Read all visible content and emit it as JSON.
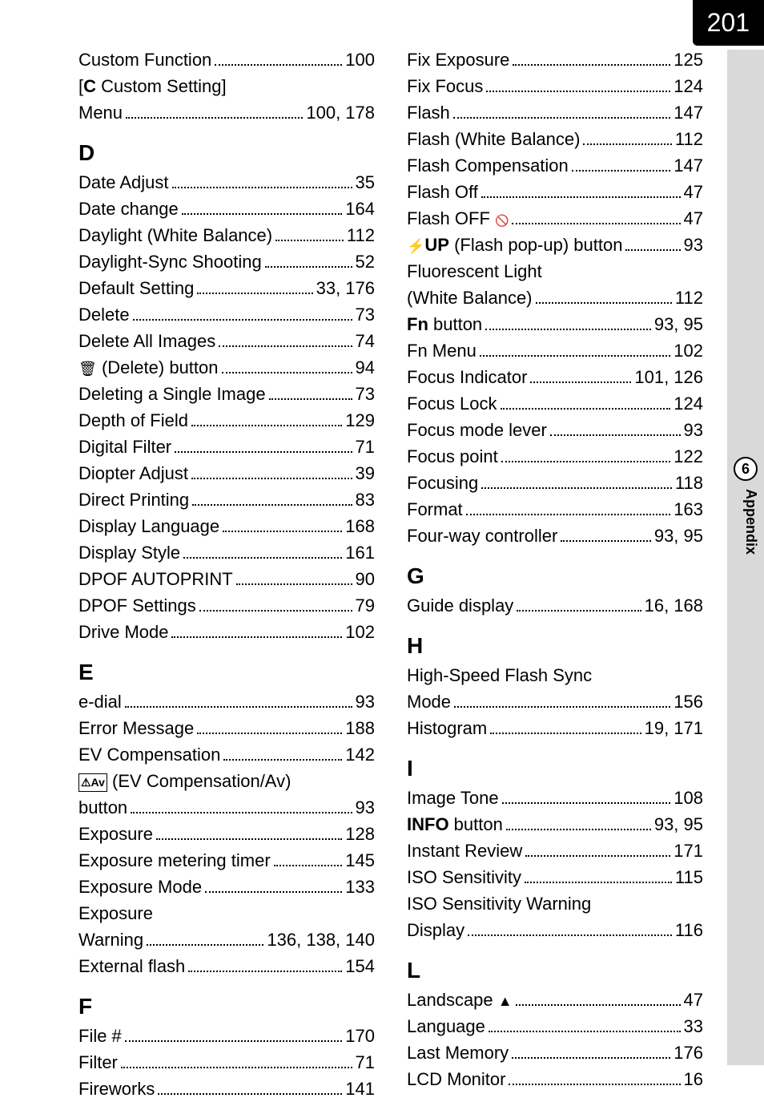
{
  "page_number": "201",
  "side": {
    "section_number": "6",
    "section_label": "Appendix"
  },
  "left_col": [
    {
      "type": "entry",
      "label": "Custom Function",
      "pages": "100"
    },
    {
      "type": "entry",
      "label_html": "[<b>C</b> Custom Setting]",
      "continuation": true
    },
    {
      "type": "entry",
      "label": "Menu",
      "pages": "100, 178"
    },
    {
      "type": "head",
      "text": "D"
    },
    {
      "type": "entry",
      "label": "Date Adjust",
      "pages": "35"
    },
    {
      "type": "entry",
      "label": "Date change",
      "pages": "164"
    },
    {
      "type": "entry",
      "label": "Daylight (White Balance)",
      "pages": "112"
    },
    {
      "type": "entry",
      "label": "Daylight-Sync Shooting",
      "pages": "52"
    },
    {
      "type": "entry",
      "label": "Default Setting",
      "pages": "33, 176"
    },
    {
      "type": "entry",
      "label": "Delete",
      "pages": "73"
    },
    {
      "type": "entry",
      "label": "Delete All Images",
      "pages": "74"
    },
    {
      "type": "entry",
      "label_html": "<span class='icon-trash'></span> (Delete) button",
      "pages": "94"
    },
    {
      "type": "entry",
      "label": "Deleting a Single Image",
      "pages": "73"
    },
    {
      "type": "entry",
      "label": "Depth of Field",
      "pages": "129"
    },
    {
      "type": "entry",
      "label": "Digital Filter",
      "pages": "71"
    },
    {
      "type": "entry",
      "label": "Diopter Adjust",
      "pages": "39"
    },
    {
      "type": "entry",
      "label": "Direct Printing",
      "pages": "83"
    },
    {
      "type": "entry",
      "label": "Display Language",
      "pages": "168"
    },
    {
      "type": "entry",
      "label": "Display Style",
      "pages": "161"
    },
    {
      "type": "entry",
      "label": "DPOF AUTOPRINT",
      "pages": "90"
    },
    {
      "type": "entry",
      "label": "DPOF Settings",
      "pages": "79"
    },
    {
      "type": "entry",
      "label": "Drive Mode",
      "pages": "102"
    },
    {
      "type": "head",
      "text": "E"
    },
    {
      "type": "entry",
      "label": "e-dial",
      "pages": "93"
    },
    {
      "type": "entry",
      "label": "Error Message",
      "pages": "188"
    },
    {
      "type": "entry",
      "label": "EV Compensation",
      "pages": "142"
    },
    {
      "type": "entry",
      "label_html": "<span class='icon-evav'>&#9888;Av</span> (EV Compensation/Av)",
      "continuation": true
    },
    {
      "type": "entry",
      "label": "button",
      "pages": "93"
    },
    {
      "type": "entry",
      "label": "Exposure",
      "pages": "128"
    },
    {
      "type": "entry",
      "label": "Exposure metering timer",
      "pages": "145"
    },
    {
      "type": "entry",
      "label": "Exposure Mode",
      "pages": "133"
    },
    {
      "type": "entry",
      "label": "Exposure",
      "continuation": true
    },
    {
      "type": "entry",
      "label": "Warning",
      "pages": "136, 138, 140"
    },
    {
      "type": "entry",
      "label": "External flash",
      "pages": "154"
    },
    {
      "type": "head",
      "text": "F"
    },
    {
      "type": "entry",
      "label": "File #",
      "pages": "170"
    },
    {
      "type": "entry",
      "label": "Filter",
      "pages": "71"
    },
    {
      "type": "entry",
      "label": "Fireworks",
      "pages": "141"
    }
  ],
  "right_col": [
    {
      "type": "entry",
      "label": "Fix Exposure",
      "pages": "125"
    },
    {
      "type": "entry",
      "label": "Fix Focus",
      "pages": "124"
    },
    {
      "type": "entry",
      "label": "Flash",
      "pages": "147"
    },
    {
      "type": "entry",
      "label": "Flash (White Balance)",
      "pages": "112"
    },
    {
      "type": "entry",
      "label": "Flash Compensation",
      "pages": "147"
    },
    {
      "type": "entry",
      "label": "Flash Off",
      "pages": "47"
    },
    {
      "type": "entry",
      "label_html": "Flash OFF <span class='icon-noflash'></span>",
      "pages": "47"
    },
    {
      "type": "entry",
      "label_html": "<b><span class='icon-flash'></span>UP</b> (Flash pop-up) button",
      "pages": "93"
    },
    {
      "type": "entry",
      "label": "Fluorescent Light",
      "continuation": true
    },
    {
      "type": "entry",
      "label": "(White Balance)",
      "pages": "112"
    },
    {
      "type": "entry",
      "label_html": "<b>Fn</b> button",
      "pages": "93, 95"
    },
    {
      "type": "entry",
      "label": "Fn Menu",
      "pages": "102"
    },
    {
      "type": "entry",
      "label": "Focus Indicator",
      "pages": "101, 126"
    },
    {
      "type": "entry",
      "label": "Focus Lock",
      "pages": "124"
    },
    {
      "type": "entry",
      "label": "Focus mode lever",
      "pages": "93"
    },
    {
      "type": "entry",
      "label": "Focus point",
      "pages": "122"
    },
    {
      "type": "entry",
      "label": "Focusing",
      "pages": "118"
    },
    {
      "type": "entry",
      "label": "Format",
      "pages": "163"
    },
    {
      "type": "entry",
      "label": "Four-way controller",
      "pages": "93, 95"
    },
    {
      "type": "head",
      "text": "G"
    },
    {
      "type": "entry",
      "label": "Guide display",
      "pages": "16, 168"
    },
    {
      "type": "head",
      "text": "H"
    },
    {
      "type": "entry",
      "label": "High-Speed Flash Sync",
      "continuation": true
    },
    {
      "type": "entry",
      "label": "Mode",
      "pages": "156"
    },
    {
      "type": "entry",
      "label": "Histogram",
      "pages": "19, 171"
    },
    {
      "type": "head",
      "text": "I"
    },
    {
      "type": "entry",
      "label": "Image Tone",
      "pages": "108"
    },
    {
      "type": "entry",
      "label_html": "<b>INFO</b> button",
      "pages": "93, 95"
    },
    {
      "type": "entry",
      "label": "Instant Review",
      "pages": "171"
    },
    {
      "type": "entry",
      "label": "ISO Sensitivity",
      "pages": "115"
    },
    {
      "type": "entry",
      "label": "ISO Sensitivity Warning",
      "continuation": true
    },
    {
      "type": "entry",
      "label": "Display",
      "pages": "116"
    },
    {
      "type": "head",
      "text": "L"
    },
    {
      "type": "entry",
      "label_html": "Landscape <span class='icon-mountain'></span>",
      "pages": "47"
    },
    {
      "type": "entry",
      "label": "Language",
      "pages": "33"
    },
    {
      "type": "entry",
      "label": "Last Memory",
      "pages": "176"
    },
    {
      "type": "entry",
      "label": "LCD Monitor",
      "pages": "16"
    }
  ]
}
